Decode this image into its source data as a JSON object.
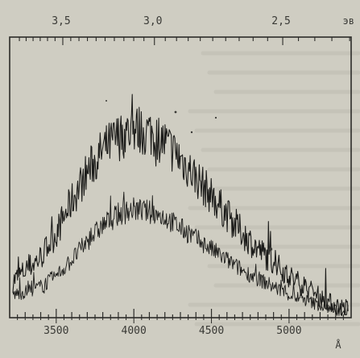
{
  "colors": {
    "paper": "#cfcdc2",
    "bleed_text": "#b9b7ab",
    "ink": "#2b2b28",
    "trace": "#1c1c1a"
  },
  "chart_data": {
    "type": "line",
    "title": "",
    "x_range": [
      3200,
      5400
    ],
    "y_range": [
      0,
      1
    ],
    "grid": false,
    "legend": "none",
    "bottom_axis": {
      "unit": "Å",
      "ticks": [
        3500,
        4000,
        4500,
        5000
      ],
      "tick_labels": [
        "3500",
        "4000",
        "4500",
        "5000"
      ]
    },
    "top_axis": {
      "unit": "эв",
      "ticks": [
        3.5,
        3.0,
        2.5
      ],
      "tick_labels": [
        "3,5",
        "3,0",
        "2,5"
      ]
    },
    "x": [
      3220,
      3300,
      3400,
      3500,
      3600,
      3700,
      3800,
      3900,
      4000,
      4100,
      4200,
      4300,
      4400,
      4500,
      4600,
      4700,
      4800,
      4900,
      5000,
      5100,
      5200,
      5300,
      5380
    ],
    "series": [
      {
        "values": [
          0.13,
          0.17,
          0.22,
          0.31,
          0.43,
          0.54,
          0.62,
          0.67,
          0.7,
          0.69,
          0.65,
          0.59,
          0.52,
          0.45,
          0.38,
          0.31,
          0.25,
          0.2,
          0.15,
          0.11,
          0.07,
          0.04,
          0.03
        ]
      },
      {
        "values": [
          0.08,
          0.09,
          0.11,
          0.15,
          0.21,
          0.28,
          0.34,
          0.38,
          0.4,
          0.39,
          0.37,
          0.33,
          0.29,
          0.25,
          0.21,
          0.17,
          0.14,
          0.11,
          0.08,
          0.06,
          0.04,
          0.02,
          0.02
        ]
      }
    ]
  }
}
